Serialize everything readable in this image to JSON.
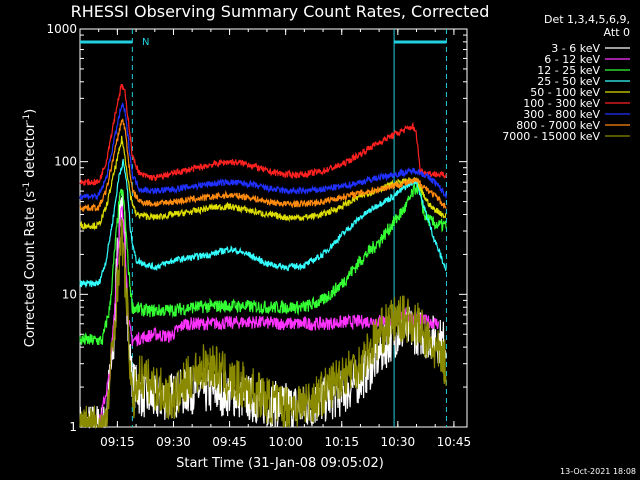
{
  "chart_data": {
    "type": "line",
    "title": "RHESSI Observing Summary Count Rates, Corrected",
    "xlabel": "Start Time (31-Jan-08 09:05:02)",
    "ylabel_main": "Corrected Count Rate (s",
    "ylabel_sup1": "-1",
    "ylabel_mid": " detector",
    "ylabel_sup2": "-1",
    "ylabel_end": ")",
    "yscale": "log",
    "ylim": [
      1,
      1000
    ],
    "xlim_min": [
      0,
      100
    ],
    "xticks": [
      {
        "min": 10,
        "label": "09:15"
      },
      {
        "min": 25,
        "label": "09:30"
      },
      {
        "min": 40,
        "label": "09:45"
      },
      {
        "min": 55,
        "label": "10:00"
      },
      {
        "min": 70,
        "label": "10:15"
      },
      {
        "min": 85,
        "label": "10:30"
      },
      {
        "min": 100,
        "label": "10:45"
      }
    ],
    "yticks": [
      {
        "value": 1,
        "label": "1"
      },
      {
        "value": 10,
        "label": "10"
      },
      {
        "value": 100,
        "label": "100"
      },
      {
        "value": 1000,
        "label": "1000"
      }
    ],
    "legend_header": [
      "Det 1,3,4,5,6,9,",
      "Att 0"
    ],
    "legend_placement": "top-right outside",
    "footer_timestamp": "13-Oct-2021 18:08",
    "night_marker": "N",
    "attenuator_line_color": "#22d0e0",
    "attenuator_lines_min": [
      14,
      84,
      98
    ],
    "attenuator_bars": [
      [
        0,
        14
      ],
      [
        84,
        98
      ]
    ],
    "series": [
      {
        "name": "3 - 6 keV",
        "color": "#ffffff",
        "points": [
          [
            0,
            1
          ],
          [
            6.5,
            1
          ],
          [
            9,
            4
          ],
          [
            10,
            22
          ],
          [
            11,
            55
          ],
          [
            12,
            30
          ],
          [
            13,
            4
          ],
          [
            14,
            2.2
          ],
          [
            16,
            1.8
          ],
          [
            20,
            1.6
          ],
          [
            30,
            1.9
          ],
          [
            40,
            1.8
          ],
          [
            50,
            1.5
          ],
          [
            60,
            1.4
          ],
          [
            70,
            1.8
          ],
          [
            75,
            2.3
          ],
          [
            80,
            3.5
          ],
          [
            84,
            5
          ],
          [
            88,
            5.5
          ],
          [
            92,
            5
          ],
          [
            96,
            4.5
          ],
          [
            98,
            4.2
          ]
        ]
      },
      {
        "name": "6 - 12 keV",
        "color": "#ff33ff",
        "points": [
          [
            5,
            1
          ],
          [
            8,
            2.5
          ],
          [
            9.5,
            10
          ],
          [
            10.5,
            32
          ],
          [
            11.2,
            45
          ],
          [
            12,
            25
          ],
          [
            13,
            6
          ],
          [
            14,
            4.5
          ],
          [
            20,
            5
          ],
          [
            24,
            4.8
          ],
          [
            28,
            6
          ],
          [
            35,
            6
          ],
          [
            45,
            6.2
          ],
          [
            55,
            6
          ],
          [
            65,
            6
          ],
          [
            72,
            6.2
          ],
          [
            80,
            6.3
          ],
          [
            84,
            6.5
          ],
          [
            86,
            7
          ],
          [
            90,
            6.5
          ],
          [
            96,
            6
          ]
        ]
      },
      {
        "name": "12 - 25 keV",
        "color": "#33ff33",
        "points": [
          [
            0,
            4.5
          ],
          [
            6,
            4.5
          ],
          [
            8,
            8
          ],
          [
            9.5,
            25
          ],
          [
            10.5,
            50
          ],
          [
            11.3,
            62
          ],
          [
            12,
            40
          ],
          [
            13,
            15
          ],
          [
            14,
            8
          ],
          [
            18,
            7.5
          ],
          [
            25,
            7.6
          ],
          [
            30,
            8
          ],
          [
            40,
            8.2
          ],
          [
            50,
            8
          ],
          [
            60,
            8
          ],
          [
            65,
            9
          ],
          [
            70,
            12
          ],
          [
            75,
            18
          ],
          [
            80,
            25
          ],
          [
            84,
            35
          ],
          [
            87,
            45
          ],
          [
            89,
            58
          ],
          [
            90,
            65
          ],
          [
            91,
            58
          ],
          [
            92,
            40
          ],
          [
            94,
            35
          ],
          [
            96,
            33
          ],
          [
            98,
            33
          ]
        ]
      },
      {
        "name": "25 - 50 keV",
        "color": "#33ffff",
        "points": [
          [
            0,
            12
          ],
          [
            5,
            12
          ],
          [
            7,
            18
          ],
          [
            9,
            40
          ],
          [
            10.5,
            80
          ],
          [
            11.5,
            100
          ],
          [
            12.5,
            70
          ],
          [
            13.5,
            30
          ],
          [
            15,
            18
          ],
          [
            20,
            16
          ],
          [
            25,
            18
          ],
          [
            30,
            19
          ],
          [
            35,
            20
          ],
          [
            40,
            22
          ],
          [
            45,
            20
          ],
          [
            50,
            17
          ],
          [
            55,
            16
          ],
          [
            60,
            16.5
          ],
          [
            65,
            20
          ],
          [
            70,
            28
          ],
          [
            75,
            38
          ],
          [
            80,
            48
          ],
          [
            84,
            55
          ],
          [
            88,
            68
          ],
          [
            90,
            72
          ],
          [
            92,
            45
          ],
          [
            95,
            25
          ],
          [
            98,
            15
          ]
        ]
      },
      {
        "name": "50 - 100 keV",
        "color": "#dddd00",
        "points": [
          [
            0,
            33
          ],
          [
            5,
            33
          ],
          [
            7,
            45
          ],
          [
            9,
            80
          ],
          [
            10.5,
            120
          ],
          [
            11.2,
            150
          ],
          [
            12,
            110
          ],
          [
            13.5,
            55
          ],
          [
            15,
            40
          ],
          [
            20,
            38
          ],
          [
            25,
            40
          ],
          [
            30,
            42
          ],
          [
            35,
            45
          ],
          [
            40,
            46
          ],
          [
            45,
            43
          ],
          [
            50,
            40
          ],
          [
            55,
            38
          ],
          [
            60,
            38
          ],
          [
            65,
            40
          ],
          [
            70,
            46
          ],
          [
            75,
            55
          ],
          [
            80,
            62
          ],
          [
            84,
            68
          ],
          [
            88,
            72
          ],
          [
            90,
            72
          ],
          [
            92,
            55
          ],
          [
            94,
            45
          ],
          [
            96,
            42
          ],
          [
            98,
            38
          ]
        ]
      },
      {
        "name": "100 - 300 keV",
        "color": "#ff2020",
        "points": [
          [
            0,
            70
          ],
          [
            5,
            70
          ],
          [
            7,
            100
          ],
          [
            9,
            200
          ],
          [
            10.5,
            320
          ],
          [
            11.2,
            380
          ],
          [
            12,
            330
          ],
          [
            13,
            200
          ],
          [
            14,
            110
          ],
          [
            16,
            80
          ],
          [
            20,
            75
          ],
          [
            25,
            82
          ],
          [
            30,
            88
          ],
          [
            35,
            95
          ],
          [
            40,
            100
          ],
          [
            45,
            96
          ],
          [
            50,
            85
          ],
          [
            55,
            80
          ],
          [
            60,
            80
          ],
          [
            65,
            85
          ],
          [
            70,
            95
          ],
          [
            74,
            110
          ],
          [
            78,
            130
          ],
          [
            82,
            150
          ],
          [
            86,
            170
          ],
          [
            89,
            185
          ],
          [
            90,
            160
          ],
          [
            91,
            85
          ],
          [
            93,
            82
          ],
          [
            96,
            80
          ],
          [
            98,
            78
          ]
        ]
      },
      {
        "name": "300 - 800 keV",
        "color": "#2030ff",
        "points": [
          [
            0,
            55
          ],
          [
            5,
            55
          ],
          [
            7,
            75
          ],
          [
            9,
            140
          ],
          [
            10.5,
            220
          ],
          [
            11.2,
            270
          ],
          [
            12,
            240
          ],
          [
            13,
            140
          ],
          [
            14,
            80
          ],
          [
            16,
            62
          ],
          [
            20,
            60
          ],
          [
            25,
            62
          ],
          [
            30,
            65
          ],
          [
            35,
            68
          ],
          [
            40,
            70
          ],
          [
            45,
            68
          ],
          [
            50,
            63
          ],
          [
            55,
            60
          ],
          [
            60,
            60
          ],
          [
            65,
            62
          ],
          [
            70,
            65
          ],
          [
            75,
            70
          ],
          [
            80,
            76
          ],
          [
            84,
            80
          ],
          [
            88,
            84
          ],
          [
            90,
            86
          ],
          [
            92,
            80
          ],
          [
            95,
            70
          ],
          [
            98,
            55
          ]
        ]
      },
      {
        "name": "800 - 7000 keV",
        "color": "#ff8a10",
        "points": [
          [
            0,
            45
          ],
          [
            5,
            45
          ],
          [
            7,
            60
          ],
          [
            9,
            110
          ],
          [
            10.5,
            170
          ],
          [
            11.2,
            210
          ],
          [
            12,
            180
          ],
          [
            13,
            100
          ],
          [
            14,
            60
          ],
          [
            16,
            50
          ],
          [
            20,
            48
          ],
          [
            25,
            50
          ],
          [
            30,
            52
          ],
          [
            35,
            54
          ],
          [
            40,
            56
          ],
          [
            45,
            54
          ],
          [
            50,
            50
          ],
          [
            55,
            48
          ],
          [
            60,
            48
          ],
          [
            65,
            50
          ],
          [
            70,
            54
          ],
          [
            75,
            58
          ],
          [
            80,
            62
          ],
          [
            84,
            66
          ],
          [
            88,
            70
          ],
          [
            90,
            72
          ],
          [
            92,
            65
          ],
          [
            95,
            55
          ],
          [
            98,
            45
          ]
        ]
      },
      {
        "name": "7000 - 15000 keV",
        "color": "#8a8a00",
        "points": [
          [
            0,
            1
          ],
          [
            7,
            1
          ],
          [
            9,
            5
          ],
          [
            10.5,
            18
          ],
          [
            11.2,
            28
          ],
          [
            12,
            14
          ],
          [
            13,
            5
          ],
          [
            14,
            1.4
          ],
          [
            15,
            2
          ],
          [
            16,
            2.5
          ],
          [
            20,
            2
          ],
          [
            25,
            1.6
          ],
          [
            30,
            2.5
          ],
          [
            35,
            3
          ],
          [
            40,
            2.2
          ],
          [
            45,
            2
          ],
          [
            50,
            1.6
          ],
          [
            55,
            1.4
          ],
          [
            60,
            1.5
          ],
          [
            65,
            1.8
          ],
          [
            70,
            2.5
          ],
          [
            75,
            3
          ],
          [
            80,
            5
          ],
          [
            84,
            6.5
          ],
          [
            88,
            6.5
          ],
          [
            90,
            6
          ],
          [
            94,
            4
          ],
          [
            96,
            3.5
          ],
          [
            98,
            3
          ]
        ]
      }
    ]
  }
}
